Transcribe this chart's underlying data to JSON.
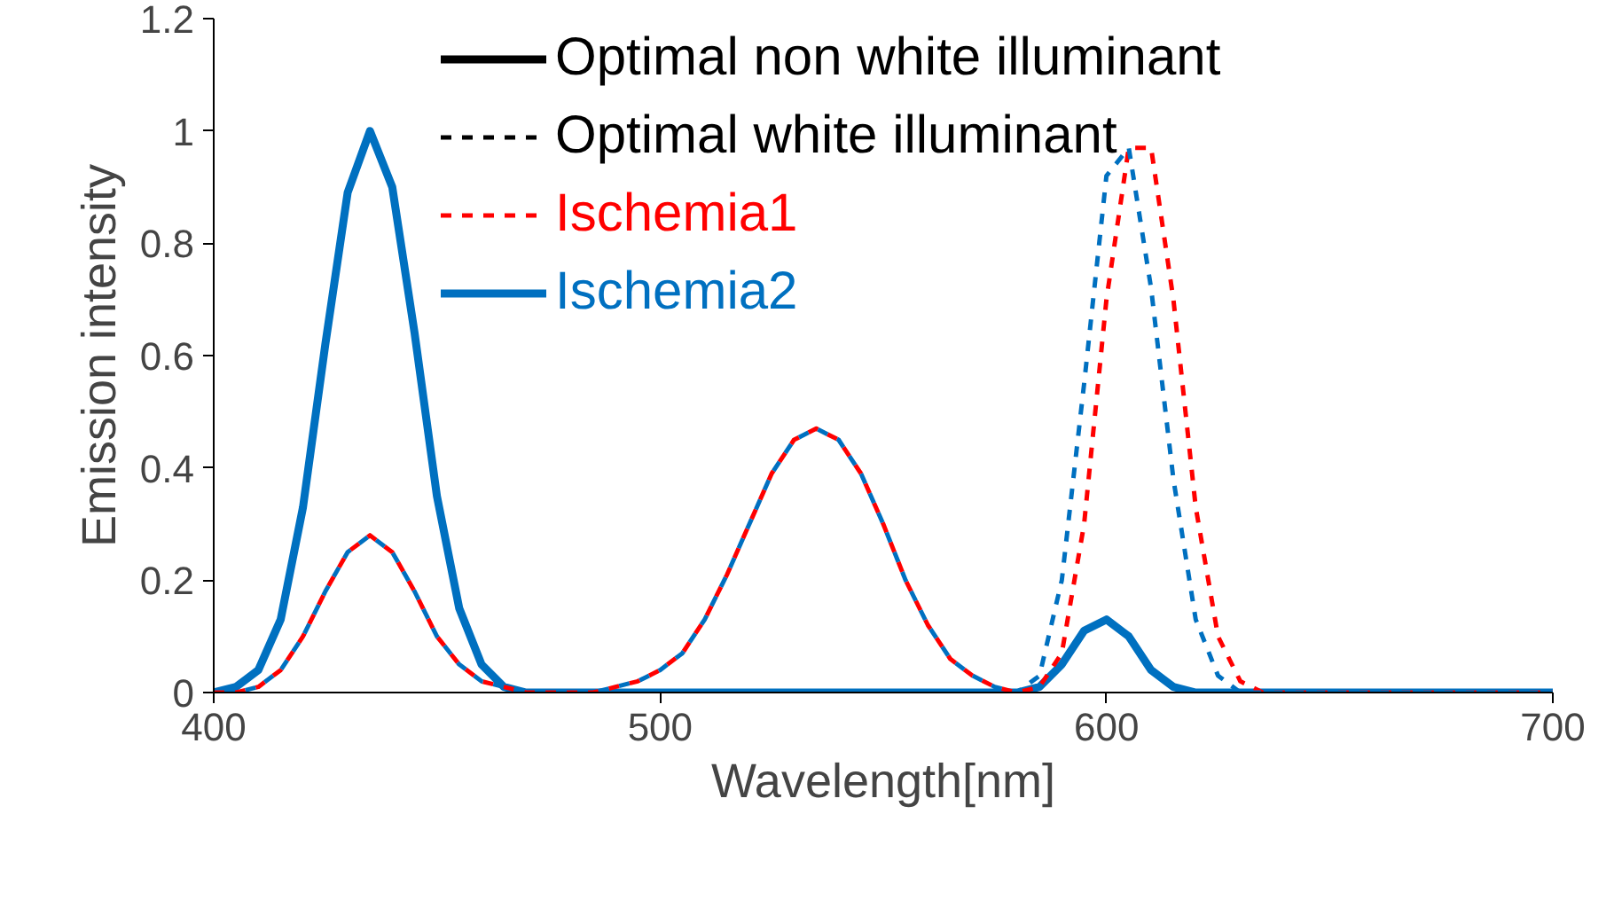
{
  "chart_data": {
    "type": "line",
    "xlabel": "Wavelength[nm]",
    "ylabel": "Emission intensity",
    "x": [
      400,
      405,
      410,
      415,
      420,
      425,
      430,
      435,
      440,
      445,
      450,
      455,
      460,
      465,
      470,
      475,
      480,
      485,
      490,
      495,
      500,
      505,
      510,
      515,
      520,
      525,
      530,
      535,
      540,
      545,
      550,
      555,
      560,
      565,
      570,
      575,
      580,
      585,
      590,
      595,
      600,
      605,
      610,
      615,
      620,
      625,
      630,
      635,
      640,
      645,
      650,
      655,
      660,
      665,
      670,
      675,
      680,
      685,
      690,
      695,
      700
    ],
    "series": [
      {
        "name": "Optimal non white illuminant",
        "color": "#000000",
        "line_style": "solid",
        "values": [
          null,
          null,
          null,
          null,
          null,
          null,
          null,
          null,
          null,
          null,
          null,
          null,
          null,
          null,
          null,
          null,
          null,
          null,
          null,
          null,
          null,
          null,
          null,
          null,
          null,
          null,
          null,
          null,
          null,
          null,
          null,
          null,
          null,
          null,
          null,
          null,
          null,
          null,
          null,
          null,
          null,
          null,
          null,
          null,
          null,
          null,
          null,
          null,
          null,
          null,
          null,
          null,
          null,
          null,
          null,
          null,
          null,
          null,
          null,
          null,
          null
        ]
      },
      {
        "name": "Optimal white illuminant",
        "color": "#000000",
        "line_style": "dashed",
        "values": [
          null,
          null,
          null,
          null,
          null,
          null,
          null,
          null,
          null,
          null,
          null,
          null,
          null,
          null,
          null,
          null,
          null,
          null,
          null,
          null,
          null,
          null,
          null,
          null,
          null,
          null,
          null,
          null,
          null,
          null,
          null,
          null,
          null,
          null,
          null,
          null,
          null,
          null,
          null,
          null,
          null,
          null,
          null,
          null,
          null,
          null,
          null,
          null,
          null,
          null,
          null,
          null,
          null,
          null,
          null,
          null,
          null,
          null,
          null,
          null,
          null
        ]
      },
      {
        "name": "Ischemia1",
        "color": "#ff0000",
        "line_style": "dashed",
        "values": [
          0,
          0,
          0.01,
          0.04,
          0.1,
          0.18,
          0.25,
          0.28,
          0.25,
          0.18,
          0.1,
          0.05,
          0.02,
          0.01,
          0,
          0,
          0,
          0,
          0.01,
          0.02,
          0.04,
          0.07,
          0.13,
          0.21,
          0.3,
          0.39,
          0.45,
          0.47,
          0.45,
          0.39,
          0.3,
          0.2,
          0.12,
          0.06,
          0.03,
          0.01,
          0,
          0.01,
          0.07,
          0.3,
          0.7,
          0.97,
          0.97,
          0.7,
          0.33,
          0.1,
          0.02,
          0,
          0,
          0,
          0,
          0,
          0,
          0,
          0,
          0,
          0,
          0,
          0,
          0,
          0
        ]
      },
      {
        "name": "Ischemia2",
        "color": "#0070c0",
        "line_style": "solid",
        "values": [
          0,
          0.01,
          0.04,
          0.13,
          0.33,
          0.62,
          0.89,
          1,
          0.9,
          0.64,
          0.35,
          0.15,
          0.05,
          0.01,
          0,
          0,
          0,
          0,
          0,
          0,
          0,
          0,
          0,
          0,
          0,
          0,
          0,
          0,
          0,
          0,
          0,
          0,
          0,
          0,
          0,
          0,
          0,
          0.01,
          0.05,
          0.11,
          0.13,
          0.1,
          0.04,
          0.01,
          0,
          0,
          0,
          0,
          0,
          0,
          0,
          0,
          0,
          0,
          0,
          0,
          0,
          0,
          0,
          0,
          0
        ]
      },
      {
        "color": "#0070c0",
        "line_style": "dashed",
        "values": [
          0,
          0,
          0.01,
          0.04,
          0.1,
          0.18,
          0.25,
          0.28,
          0.25,
          0.18,
          0.1,
          0.05,
          0.02,
          0.01,
          0,
          0,
          0,
          0,
          0.01,
          0.02,
          0.04,
          0.07,
          0.13,
          0.21,
          0.3,
          0.39,
          0.45,
          0.47,
          0.45,
          0.39,
          0.3,
          0.2,
          0.12,
          0.06,
          0.03,
          0.01,
          0,
          0.03,
          0.2,
          0.55,
          0.92,
          0.97,
          0.72,
          0.38,
          0.13,
          0.03,
          0,
          0,
          0,
          0,
          0,
          0,
          0,
          0,
          0,
          0,
          0,
          0,
          0,
          0,
          0
        ]
      }
    ],
    "xlim": [
      400,
      700
    ],
    "xticks": [
      400,
      500,
      600,
      700
    ],
    "ylim": [
      0,
      1.2
    ],
    "yticks": [
      0,
      0.2,
      0.4,
      0.6,
      0.8,
      1,
      1.2
    ],
    "grid": false,
    "legend": "top"
  }
}
